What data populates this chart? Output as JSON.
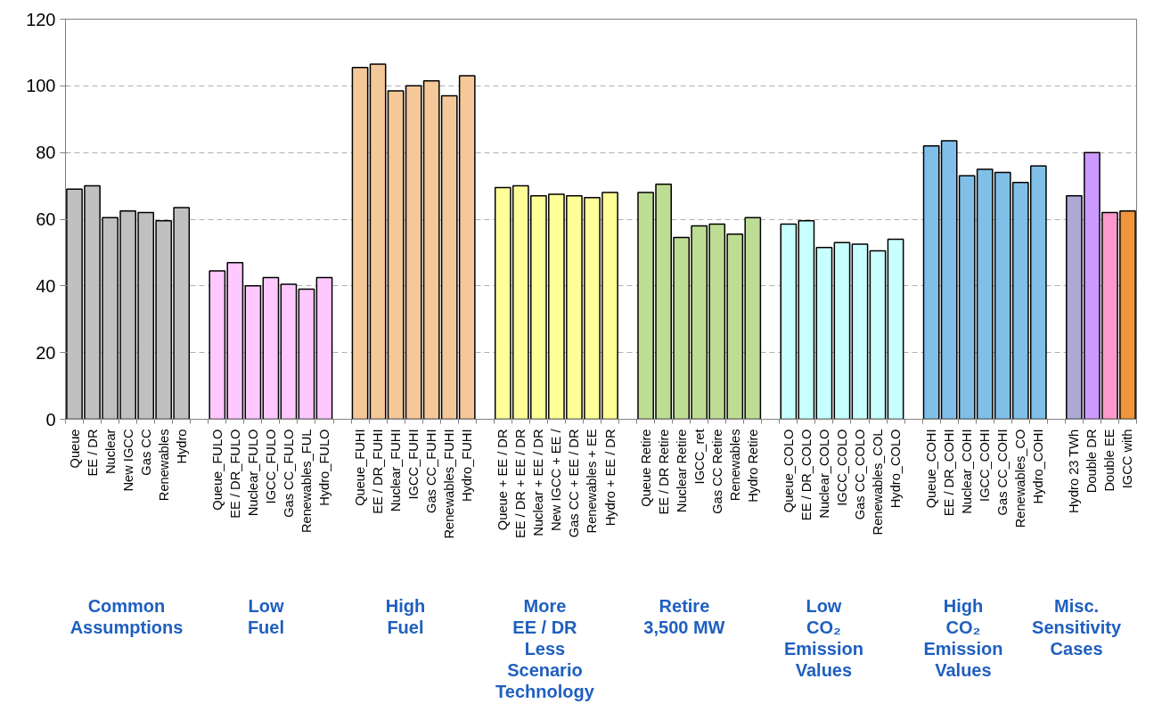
{
  "chart_data": {
    "type": "bar",
    "categories": [
      "Queue",
      "EE / DR",
      "Nuclear",
      "New IGCC",
      "Gas CC",
      "Renewables",
      "Hydro",
      null,
      "Queue_FULO",
      "EE / DR_FULO",
      "Nuclear_FULO",
      "IGCC_FULO",
      "Gas CC_FULO",
      "Renewables_FUL",
      "Hydro_FULO",
      null,
      "Queue_FUHI",
      "EE / DR_FUHI",
      "Nuclear_FUHI",
      "IGCC_FUHI",
      "Gas CC_FUHI",
      "Renewables_FUHI",
      "Hydro_FUHI",
      null,
      "Queue + EE / DR",
      "EE / DR + EE / DR",
      "Nuclear + EE / DR",
      "New IGCC + EE /",
      "Gas CC + EE / DR",
      "Renewables + EE",
      "Hydro + EE / DR",
      null,
      "Queue Retire",
      "EE / DR Retire",
      "Nuclear Retire",
      "IGCC_ret",
      "Gas CC Retire",
      "Renewables",
      "Hydro Retire",
      null,
      "Queue_COLO",
      "EE / DR_COLO",
      "Nuclear_COLO",
      "IGCC_COLO",
      "Gas CC_COLO",
      "Renewables_COL",
      "Hydro_COLO",
      null,
      "Queue_COHI",
      "EE / DR_COHI",
      "Nuclear_COHI",
      "IGCC_COHI",
      "Gas CC_COHI",
      "Renewables_CO",
      "Hydro_COHI",
      null,
      "Hydro 23 TWh",
      "Double DR",
      "Double EE",
      "IGCC with"
    ],
    "values": [
      69,
      70,
      60.5,
      62.5,
      62,
      59.5,
      63.5,
      null,
      44.5,
      47,
      40,
      42.5,
      40.5,
      39,
      42.5,
      null,
      105.5,
      106.5,
      98.5,
      100,
      101.5,
      97,
      103,
      null,
      69.5,
      70,
      67,
      67.5,
      67,
      66.5,
      68,
      null,
      68,
      70.5,
      54.5,
      58,
      58.5,
      55.5,
      60.5,
      null,
      58.5,
      59.5,
      51.5,
      53,
      52.5,
      50.5,
      54,
      null,
      82,
      83.5,
      73,
      75,
      74,
      71,
      76,
      null,
      67,
      80,
      62,
      62.5
    ],
    "colors": [
      "#c0c0c0",
      "#c0c0c0",
      "#c0c0c0",
      "#c0c0c0",
      "#c0c0c0",
      "#c0c0c0",
      "#c0c0c0",
      null,
      "#ffc8ff",
      "#ffc8ff",
      "#ffc8ff",
      "#ffc8ff",
      "#ffc8ff",
      "#ffc8ff",
      "#ffc8ff",
      null,
      "#f5c89a",
      "#f5c89a",
      "#f5c89a",
      "#f5c89a",
      "#f5c89a",
      "#f5c89a",
      "#f5c89a",
      null,
      "#ffff99",
      "#ffff99",
      "#ffff99",
      "#ffff99",
      "#ffff99",
      "#ffff99",
      "#ffff99",
      null,
      "#bedd94",
      "#bedd94",
      "#bedd94",
      "#bedd94",
      "#bedd94",
      "#bedd94",
      "#bedd94",
      null,
      "#c8ffff",
      "#c8ffff",
      "#c8ffff",
      "#c8ffff",
      "#c8ffff",
      "#c8ffff",
      "#c8ffff",
      null,
      "#80c0e8",
      "#80c0e8",
      "#80c0e8",
      "#80c0e8",
      "#80c0e8",
      "#80c0e8",
      "#80c0e8",
      null,
      "#acaad4",
      "#cc99ff",
      "#ff99cc",
      "#f0963c"
    ],
    "ylim": [
      0,
      120
    ],
    "yticks": [
      0,
      20,
      40,
      60,
      80,
      100,
      120
    ],
    "grid": "y",
    "annotations": [
      "Common\nAssumptions",
      "Low\nFuel",
      "High\nFuel",
      "More\nEE / DR\nLess\nScenario\nTechnology",
      "Retire\n3,500 MW",
      "Low\nCO₂\nEmission\nValues",
      "High\nCO₂\nEmission\nValues",
      "Misc.\nSensitivity\nCases"
    ]
  }
}
